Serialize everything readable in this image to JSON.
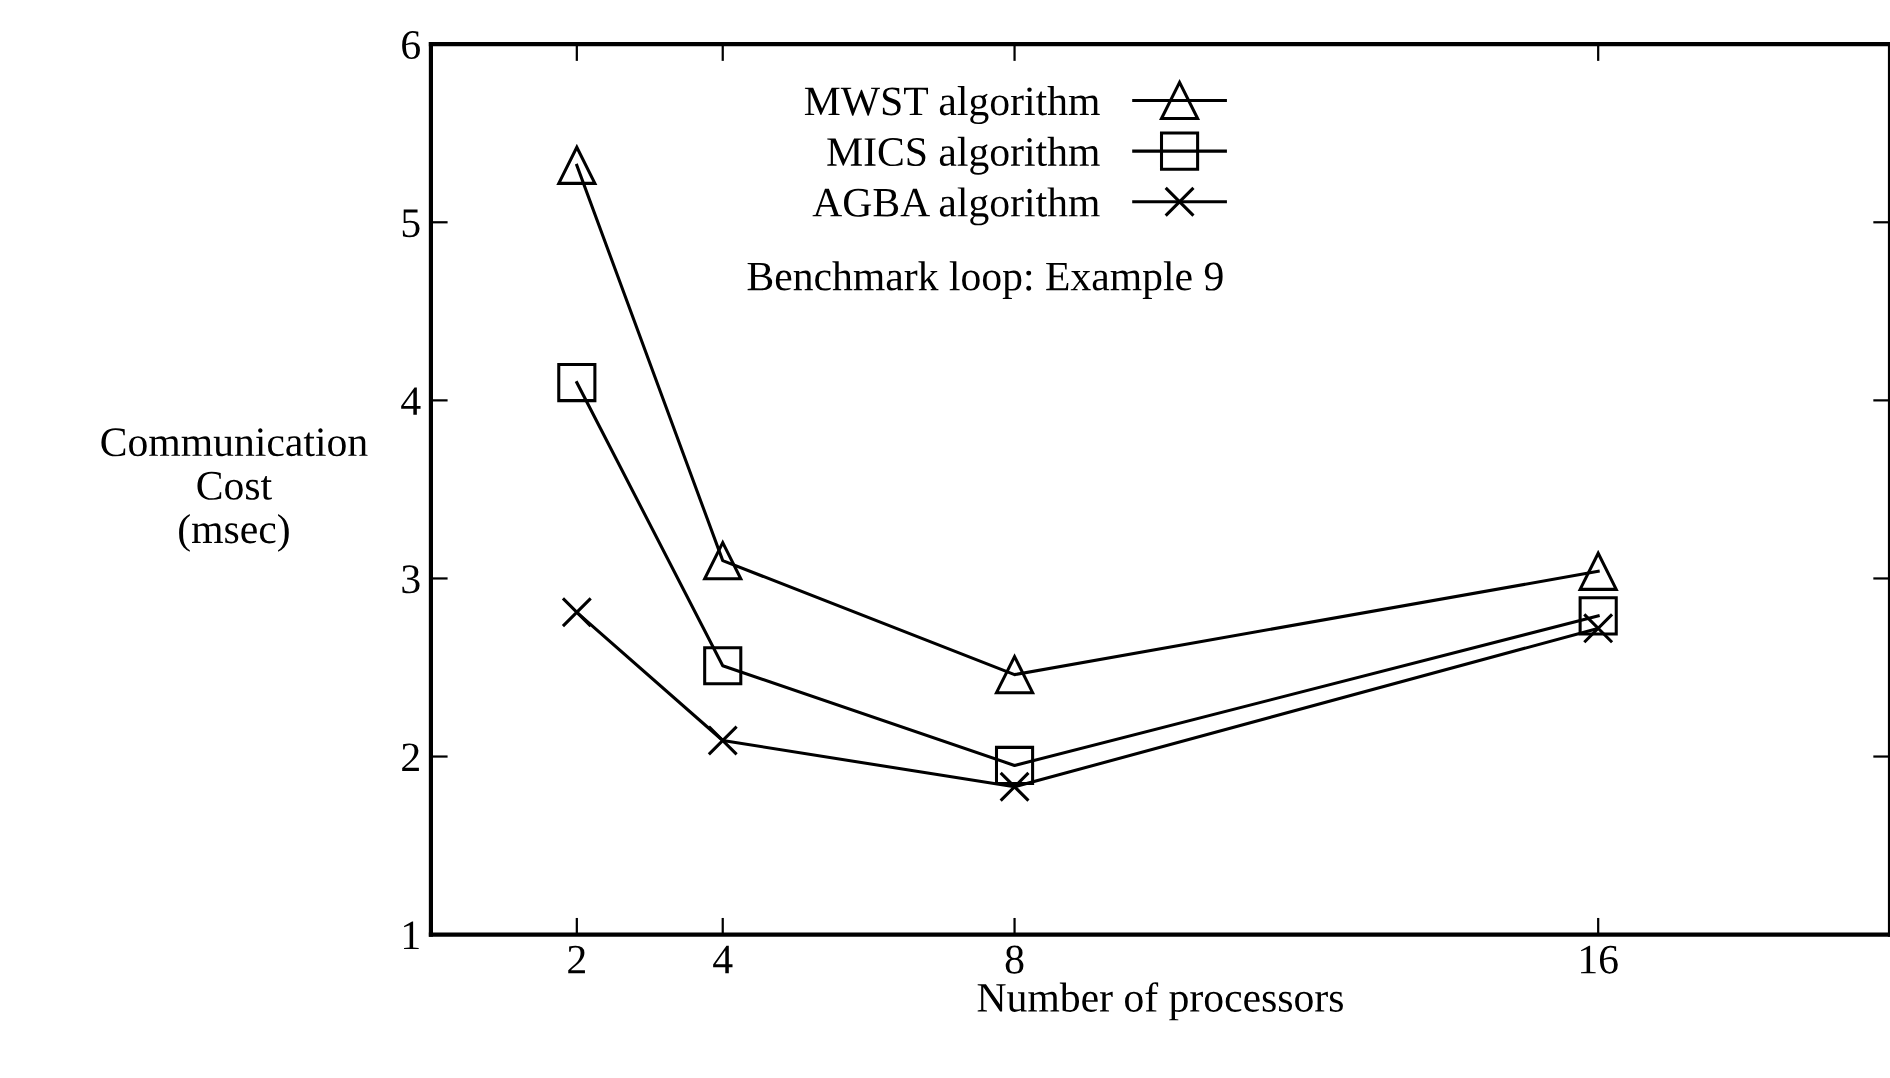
{
  "chart_data": {
    "type": "line",
    "xlabel": "Number of processors",
    "ylabel": "Communication\nCost\n(msec)",
    "x": [
      2,
      4,
      8,
      16
    ],
    "series": [
      {
        "name": "MWST algorithm",
        "color": "#000000",
        "marker": "triangle",
        "values": [
          5.32,
          3.1,
          2.46,
          3.04
        ]
      },
      {
        "name": "MICS algorithm",
        "color": "#000000",
        "marker": "square",
        "values": [
          4.1,
          2.51,
          1.95,
          2.79
        ]
      },
      {
        "name": "AGBA algorithm",
        "color": "#000000",
        "marker": "cross",
        "values": [
          2.81,
          2.09,
          1.83,
          2.72
        ]
      }
    ],
    "annotations": [
      "Benchmark loop: Example 9"
    ],
    "xlim": [
      0,
      20
    ],
    "ylim": [
      1,
      6
    ],
    "xticks": [
      2,
      4,
      8,
      16
    ],
    "yticks": [
      1,
      2,
      3,
      4,
      5,
      6
    ],
    "line_style": "solid",
    "grid": false,
    "legend": "top"
  }
}
